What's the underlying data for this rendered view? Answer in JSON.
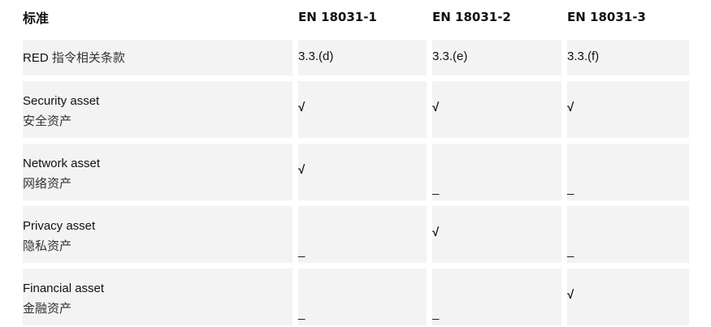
{
  "header": [
    "标准",
    "EN  18031-1",
    "EN  18031-2",
    "EN  18031-3"
  ],
  "clause_row": {
    "label_prefix": "RED",
    "label_zh": "指令相关条款",
    "values": [
      "3.3.(d)",
      "3.3.(e)",
      "3.3.(f)"
    ]
  },
  "rows": [
    {
      "en": "Security  asset",
      "zh": "安全资产",
      "values": [
        "√",
        "√",
        "√"
      ]
    },
    {
      "en": "Network  asset",
      "zh": "网络资产",
      "values": [
        "√",
        "_",
        "_"
      ]
    },
    {
      "en": "Privacy  asset",
      "zh": "隐私资产",
      "values": [
        "_",
        "√",
        "_"
      ]
    },
    {
      "en": "Financial  asset",
      "zh": "金融资产",
      "values": [
        "_",
        "_",
        "√"
      ]
    }
  ]
}
